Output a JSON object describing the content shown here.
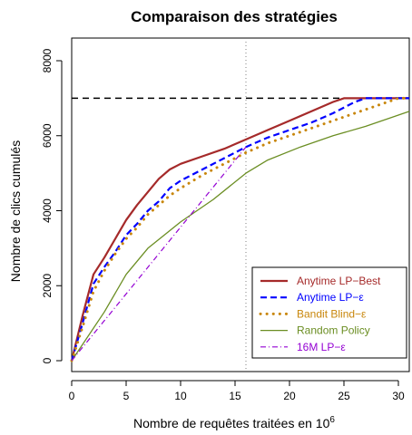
{
  "chart_data": {
    "type": "line",
    "title": "Comparaison des stratégies",
    "xlabel": "Nombre de requêtes traitées en 10",
    "xlabel_superscript": "6",
    "ylabel": "Nombre de clics cumulés",
    "xlim": [
      0,
      31
    ],
    "ylim": [
      0,
      8000
    ],
    "x_ticks": [
      0,
      5,
      10,
      15,
      20,
      25,
      30
    ],
    "y_ticks": [
      0,
      2000,
      4000,
      6000,
      8000
    ],
    "reference_lines": [
      {
        "orientation": "horizontal",
        "value": 7000,
        "style": "dashed",
        "color": "#000000"
      },
      {
        "orientation": "vertical",
        "value": 16,
        "style": "dotted",
        "color": "#808080"
      }
    ],
    "legend_position": "bottom-right",
    "series": [
      {
        "name": "Anytime LP−Best",
        "color": "#a52a2a",
        "style": "solid",
        "x": [
          0,
          1,
          2,
          3,
          4,
          5,
          6,
          7,
          8,
          9,
          10,
          12,
          14,
          16,
          18,
          20,
          22,
          24,
          25,
          27,
          31
        ],
        "y": [
          0,
          1200,
          2300,
          2750,
          3250,
          3750,
          4150,
          4500,
          4850,
          5100,
          5250,
          5450,
          5650,
          5900,
          6150,
          6400,
          6650,
          6900,
          7000,
          7000,
          7000
        ]
      },
      {
        "name": "Anytime LP−ε",
        "color": "#0000ff",
        "style": "dashed",
        "x": [
          0,
          1,
          2,
          3,
          4,
          5,
          6,
          7,
          8,
          9,
          10,
          12,
          14,
          16,
          18,
          20,
          22,
          24,
          26,
          27,
          31
        ],
        "y": [
          0,
          1000,
          2050,
          2500,
          2900,
          3350,
          3650,
          4000,
          4250,
          4600,
          4800,
          5100,
          5400,
          5700,
          5950,
          6150,
          6350,
          6600,
          6900,
          7000,
          7000
        ]
      },
      {
        "name": "Bandit Blind−ε",
        "color": "#c8860b",
        "style": "dotted",
        "x": [
          0,
          1,
          2,
          3,
          4,
          5,
          6,
          7,
          8,
          9,
          10,
          12,
          14,
          16,
          18,
          20,
          22,
          24,
          26,
          28,
          30,
          31
        ],
        "y": [
          0,
          900,
          1850,
          2400,
          2850,
          3250,
          3550,
          3900,
          4150,
          4400,
          4600,
          4950,
          5250,
          5550,
          5800,
          6000,
          6200,
          6400,
          6600,
          6800,
          7000,
          7000
        ]
      },
      {
        "name": "Random Policy",
        "color": "#6b8e23",
        "style": "solid",
        "x": [
          0,
          3,
          5,
          7,
          10,
          13,
          16,
          18,
          21,
          24,
          27,
          30,
          31
        ],
        "y": [
          0,
          1300,
          2300,
          3000,
          3700,
          4300,
          5000,
          5350,
          5700,
          6000,
          6250,
          6550,
          6650
        ]
      },
      {
        "name": "16M LP−ε",
        "color": "#9400d3",
        "style": "dashdot",
        "x": [
          0,
          16
        ],
        "y": [
          0,
          5700
        ]
      }
    ]
  }
}
